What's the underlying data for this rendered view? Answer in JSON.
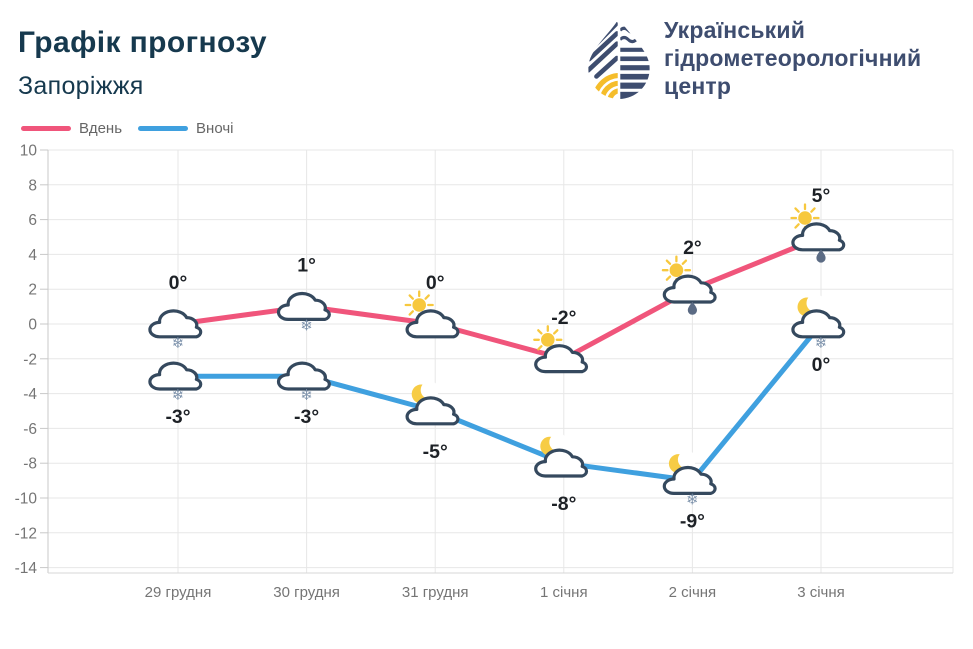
{
  "header": {
    "title": "Графік прогнозу",
    "subtitle": "Запоріжжя",
    "logo": {
      "lines": [
        "Український",
        "гідрометеорологічний",
        "центр"
      ]
    }
  },
  "legend": [
    {
      "label": "Вдень"
    },
    {
      "label": "Вночі"
    }
  ],
  "colors": {
    "day_line": "#f0557b",
    "night_line": "#3fa0df",
    "title_text": "#16394e",
    "logo_navy": "#3e4d6f",
    "logo_yellow": "#f5bd2b",
    "cloud_outline": "#35495e",
    "cloud_fill": "#ffffff",
    "sun_yellow": "#f7c83e",
    "moon_yellow": "#f7cc45",
    "snow_mark": "#7e93ac",
    "rain_mark": "#5b6b84",
    "axis_text": "#757575",
    "temp_text": "#1d2126",
    "gridline": "#e7e7e7",
    "axis_line": "#c9c9c9",
    "legend_text": "#666666"
  },
  "chart_data": {
    "type": "line",
    "title": "Графік прогнозу",
    "subtitle": "Запоріжжя",
    "categories": [
      "29 грудня",
      "30 грудня",
      "31 грудня",
      "1 січня",
      "2 січня",
      "3 січня"
    ],
    "ylim": [
      -14,
      10
    ],
    "yticks": [
      10,
      8,
      6,
      4,
      2,
      0,
      -2,
      -4,
      -6,
      -8,
      -10,
      -12,
      -14
    ],
    "grid": true,
    "legend_position": "top-left",
    "series": [
      {
        "name": "Вдень",
        "color": "#f0557b",
        "values": [
          0,
          1,
          0,
          -2,
          2,
          5
        ],
        "point_labels": [
          "0°",
          "1°",
          "0°",
          "-2°",
          "2°",
          "5°"
        ],
        "label_position": "above",
        "icons": [
          "cloud",
          "cloud",
          "sun-cloud",
          "sun-cloud",
          "sun-cloud",
          "sun-cloud"
        ],
        "marks": [
          "snow",
          "snow",
          null,
          null,
          "rain",
          "rain"
        ]
      },
      {
        "name": "Вночі",
        "color": "#3fa0df",
        "values": [
          -3,
          -3,
          -5,
          -8,
          -9,
          0
        ],
        "point_labels": [
          "-3°",
          "-3°",
          "-5°",
          "-8°",
          "-9°",
          "0°"
        ],
        "label_position": "below",
        "icons": [
          "cloud",
          "cloud",
          "moon-cloud",
          "moon-cloud",
          "moon-cloud",
          "moon-cloud"
        ],
        "marks": [
          "snow",
          "snow",
          null,
          null,
          "snow",
          "snow"
        ]
      }
    ],
    "icon_glyphs": {
      "snow-mark": "❄"
    }
  }
}
